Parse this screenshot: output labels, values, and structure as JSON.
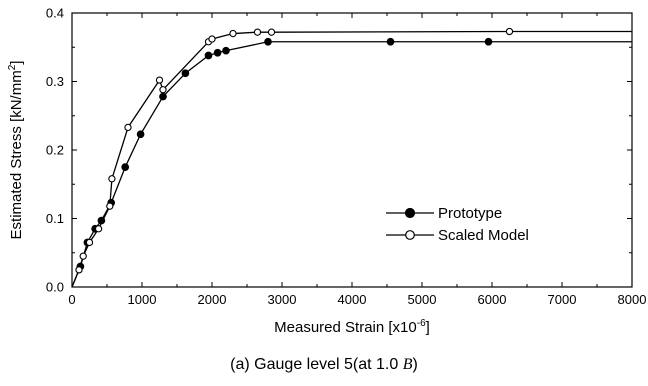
{
  "chart_data": {
    "type": "line",
    "title": "",
    "xlabel": "Measured Strain",
    "xlabel_unit_base": "[x10",
    "xlabel_unit_exp": "-6",
    "xlabel_unit_close": "]",
    "ylabel": "Estimated Stress",
    "ylabel_unit_base": "[kN/mm",
    "ylabel_unit_exp": "2",
    "ylabel_unit_close": "]",
    "xlim": [
      0,
      8000
    ],
    "ylim": [
      0,
      0.4
    ],
    "x_ticks": [
      0,
      1000,
      2000,
      3000,
      4000,
      5000,
      6000,
      7000,
      8000
    ],
    "y_ticks": [
      0.0,
      0.1,
      0.2,
      0.3,
      0.4
    ],
    "x_tick_labels": [
      "0",
      "1000",
      "2000",
      "3000",
      "4000",
      "5000",
      "6000",
      "7000",
      "8000"
    ],
    "y_tick_labels": [
      "0.0",
      "0.1",
      "0.2",
      "0.3",
      "0.4"
    ],
    "grid": false,
    "legend_position": "center-right",
    "series": [
      {
        "name": "Prototype",
        "marker": "filled-circle",
        "line_end_x": 8000,
        "x": [
          0,
          120,
          220,
          330,
          420,
          560,
          760,
          980,
          1300,
          1620,
          1950,
          2080,
          2200,
          2800,
          4550,
          5950
        ],
        "y": [
          0.0,
          0.03,
          0.065,
          0.085,
          0.097,
          0.123,
          0.175,
          0.223,
          0.278,
          0.312,
          0.338,
          0.342,
          0.345,
          0.358,
          0.358,
          0.358
        ]
      },
      {
        "name": "Scaled Model",
        "marker": "open-circle",
        "line_end_x": 8000,
        "x": [
          0,
          100,
          160,
          250,
          380,
          540,
          570,
          800,
          1250,
          1300,
          1950,
          2000,
          2300,
          2650,
          2850,
          6250
        ],
        "y": [
          0.0,
          0.025,
          0.045,
          0.065,
          0.085,
          0.118,
          0.158,
          0.233,
          0.302,
          0.288,
          0.358,
          0.362,
          0.37,
          0.372,
          0.372,
          0.373
        ]
      }
    ]
  },
  "caption": {
    "prefix": "(a) Gauge level 5(at 1.0 ",
    "symbol": "B",
    "suffix": ")"
  }
}
